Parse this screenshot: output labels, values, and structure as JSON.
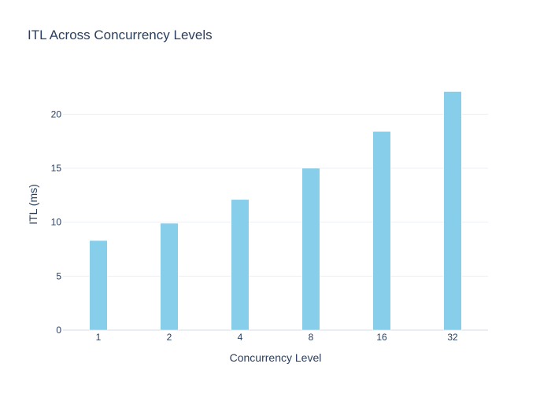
{
  "chart_data": {
    "type": "bar",
    "title": "ITL Across Concurrency Levels",
    "xlabel": "Concurrency Level",
    "ylabel": "ITL (ms)",
    "categories": [
      "1",
      "2",
      "4",
      "8",
      "16",
      "32"
    ],
    "values": [
      8.3,
      9.9,
      12.1,
      15.0,
      18.4,
      22.1
    ],
    "ylim": [
      0,
      23.3
    ],
    "yticks": [
      0,
      5,
      10,
      15,
      20
    ],
    "grid": true,
    "bar_color": "#87ceeb"
  }
}
